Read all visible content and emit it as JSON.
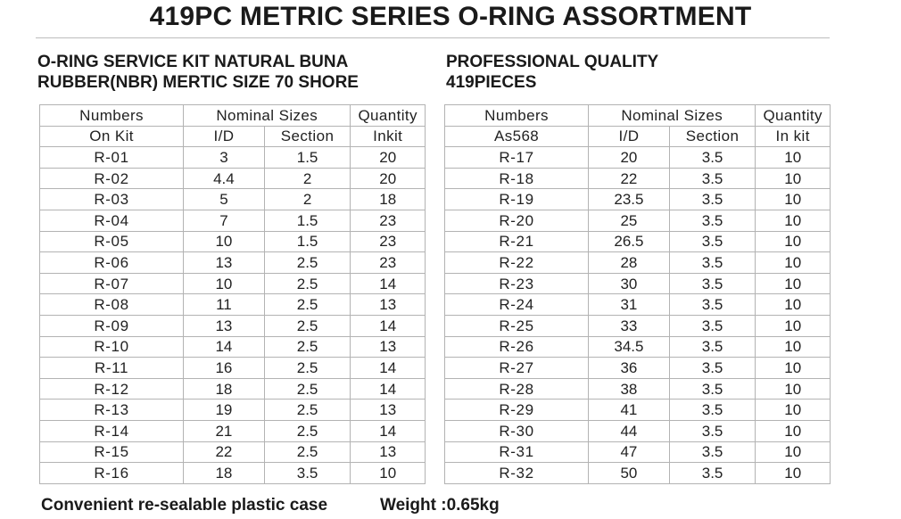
{
  "title": "419PC METRIC SERIES O-RING ASSORTMENT",
  "subtitle_left": [
    "O-RING SERVICE KIT NATURAL BUNA",
    "RUBBER(NBR) MERTIC SIZE 70 SHORE"
  ],
  "subtitle_right": [
    "PROFESSIONAL QUALITY",
    "419PIECES"
  ],
  "table_left": {
    "headers": {
      "numbers": "Numbers",
      "numbers_sub": "On Kit",
      "nominal": "Nominal Sizes",
      "id": "I/D",
      "section": "Section",
      "quantity": "Quantity",
      "quantity_sub": "Inkit"
    },
    "rows": [
      {
        "num": "R-01",
        "id": "3",
        "section": "1.5",
        "qty": "20"
      },
      {
        "num": "R-02",
        "id": "4.4",
        "section": "2",
        "qty": "20"
      },
      {
        "num": "R-03",
        "id": "5",
        "section": "2",
        "qty": "18"
      },
      {
        "num": "R-04",
        "id": "7",
        "section": "1.5",
        "qty": "23"
      },
      {
        "num": "R-05",
        "id": "10",
        "section": "1.5",
        "qty": "23"
      },
      {
        "num": "R-06",
        "id": "13",
        "section": "2.5",
        "qty": "23"
      },
      {
        "num": "R-07",
        "id": "10",
        "section": "2.5",
        "qty": "14"
      },
      {
        "num": "R-08",
        "id": "11",
        "section": "2.5",
        "qty": "13"
      },
      {
        "num": "R-09",
        "id": "13",
        "section": "2.5",
        "qty": "14"
      },
      {
        "num": "R-10",
        "id": "14",
        "section": "2.5",
        "qty": "13"
      },
      {
        "num": "R-11",
        "id": "16",
        "section": "2.5",
        "qty": "14"
      },
      {
        "num": "R-12",
        "id": "18",
        "section": "2.5",
        "qty": "14"
      },
      {
        "num": "R-13",
        "id": "19",
        "section": "2.5",
        "qty": "13"
      },
      {
        "num": "R-14",
        "id": "21",
        "section": "2.5",
        "qty": "14"
      },
      {
        "num": "R-15",
        "id": "22",
        "section": "2.5",
        "qty": "13"
      },
      {
        "num": "R-16",
        "id": "18",
        "section": "3.5",
        "qty": "10"
      }
    ]
  },
  "table_right": {
    "headers": {
      "numbers": "Numbers",
      "numbers_sub": "As568",
      "nominal": "Nominal Sizes",
      "id": "I/D",
      "section": "Section",
      "quantity": "Quantity",
      "quantity_sub": "In kit"
    },
    "rows": [
      {
        "num": "R-17",
        "id": "20",
        "section": "3.5",
        "qty": "10"
      },
      {
        "num": "R-18",
        "id": "22",
        "section": "3.5",
        "qty": "10"
      },
      {
        "num": "R-19",
        "id": "23.5",
        "section": "3.5",
        "qty": "10"
      },
      {
        "num": "R-20",
        "id": "25",
        "section": "3.5",
        "qty": "10"
      },
      {
        "num": "R-21",
        "id": "26.5",
        "section": "3.5",
        "qty": "10"
      },
      {
        "num": "R-22",
        "id": "28",
        "section": "3.5",
        "qty": "10"
      },
      {
        "num": "R-23",
        "id": "30",
        "section": "3.5",
        "qty": "10"
      },
      {
        "num": "R-24",
        "id": "31",
        "section": "3.5",
        "qty": "10"
      },
      {
        "num": "R-25",
        "id": "33",
        "section": "3.5",
        "qty": "10"
      },
      {
        "num": "R-26",
        "id": "34.5",
        "section": "3.5",
        "qty": "10"
      },
      {
        "num": "R-27",
        "id": "36",
        "section": "3.5",
        "qty": "10"
      },
      {
        "num": "R-28",
        "id": "38",
        "section": "3.5",
        "qty": "10"
      },
      {
        "num": "R-29",
        "id": "41",
        "section": "3.5",
        "qty": "10"
      },
      {
        "num": "R-30",
        "id": "44",
        "section": "3.5",
        "qty": "10"
      },
      {
        "num": "R-31",
        "id": "47",
        "section": "3.5",
        "qty": "10"
      },
      {
        "num": "R-32",
        "id": "50",
        "section": "3.5",
        "qty": "10"
      }
    ]
  },
  "footer": {
    "case": "Convenient re-sealable plastic case",
    "weight": "Weight :0.65kg"
  }
}
